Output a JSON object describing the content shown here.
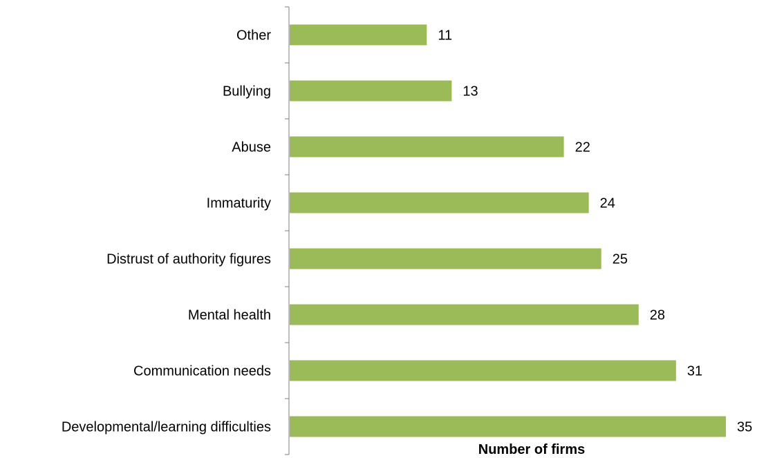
{
  "chart_data": {
    "type": "bar",
    "orientation": "horizontal",
    "categories": [
      "Other",
      "Bullying",
      "Abuse",
      "Immaturity",
      "Distrust of authority figures",
      "Mental health",
      "Communication needs",
      "Developmental/learning difficulties"
    ],
    "values": [
      11,
      13,
      22,
      24,
      25,
      28,
      31,
      35
    ],
    "title": "",
    "xlabel": "Number of firms",
    "ylabel": "",
    "xlim": [
      0,
      35
    ],
    "grid": false,
    "legend": "none",
    "data_labels": true,
    "bar_color": "#9bbb59"
  }
}
